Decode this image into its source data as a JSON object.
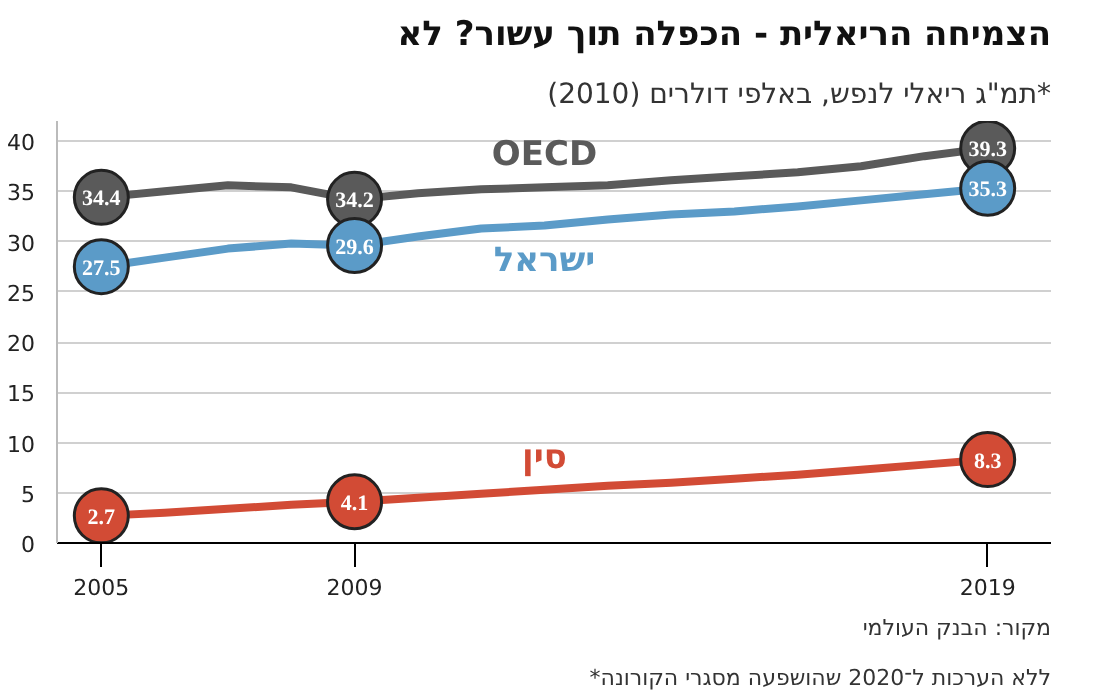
{
  "chart_data": {
    "type": "line",
    "title": "הצמיחה הריאלית - הכפלה תוך עשור? לא",
    "subtitle": "תמ\"ג ריאלי לנפש, באלפי דולרים (2010)*",
    "x": [
      2005,
      2006,
      2007,
      2008,
      2009,
      2010,
      2011,
      2012,
      2013,
      2014,
      2015,
      2016,
      2017,
      2018,
      2019
    ],
    "series": [
      {
        "name": "OECD",
        "color": "#5a5a5a",
        "values": [
          34.4,
          35.0,
          35.6,
          35.4,
          34.2,
          34.8,
          35.2,
          35.4,
          35.6,
          36.1,
          36.5,
          36.9,
          37.5,
          38.5,
          39.3
        ],
        "value_labels": [
          "34.4",
          null,
          null,
          null,
          "34.2",
          null,
          null,
          null,
          null,
          null,
          null,
          null,
          null,
          null,
          "39.3"
        ]
      },
      {
        "name": "ישראל",
        "color": "#5b9bc8",
        "values": [
          27.5,
          28.4,
          29.3,
          29.8,
          29.6,
          30.5,
          31.3,
          31.6,
          32.2,
          32.7,
          33.0,
          33.5,
          34.1,
          34.7,
          35.3
        ],
        "value_labels": [
          "27.5",
          null,
          null,
          null,
          "29.6",
          null,
          null,
          null,
          null,
          null,
          null,
          null,
          null,
          null,
          "35.3"
        ]
      },
      {
        "name": "סין",
        "color": "#d24b35",
        "values": [
          2.7,
          3.0,
          3.4,
          3.8,
          4.1,
          4.5,
          4.9,
          5.3,
          5.7,
          6.0,
          6.4,
          6.8,
          7.3,
          7.8,
          8.3
        ],
        "value_labels": [
          "2.7",
          null,
          null,
          null,
          "4.1",
          null,
          null,
          null,
          null,
          null,
          null,
          null,
          null,
          null,
          "8.3"
        ]
      }
    ],
    "xlim": [
      2004.3,
      2020.0
    ],
    "xticks": [
      2005,
      2009,
      2019
    ],
    "ylim": [
      0,
      42
    ],
    "yticks": [
      0,
      5,
      10,
      15,
      20,
      25,
      30,
      35,
      40
    ],
    "grid": "y",
    "annotations": [
      "*ללא הערכות ל־2020 שהושפעה מסגרי הקורונה",
      "מקור: הבנק העולמי"
    ]
  }
}
